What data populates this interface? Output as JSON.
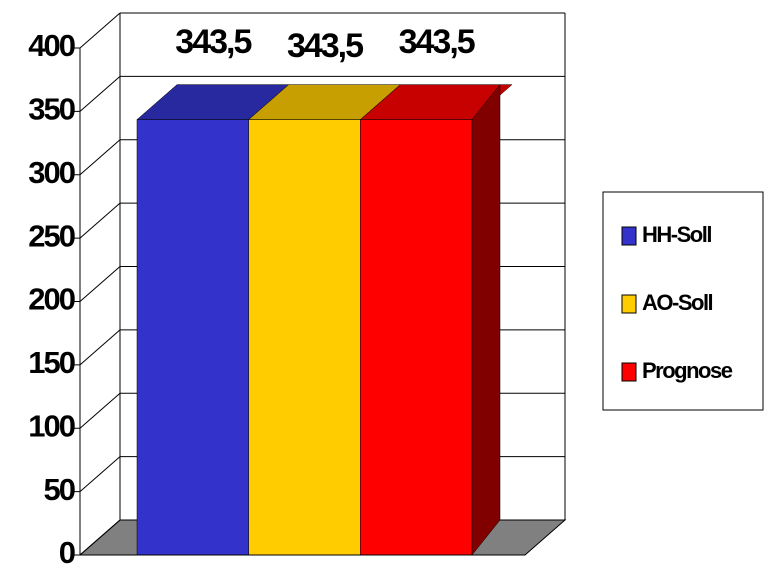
{
  "chart_data": {
    "type": "bar3d",
    "categories": [
      null
    ],
    "series": [
      {
        "name": "HH-Soll",
        "color": "#3333cc",
        "values": [
          343.5
        ],
        "value_labels": [
          "343,5"
        ]
      },
      {
        "name": "AO-Soll",
        "color": "#ffcc00",
        "values": [
          343.5
        ],
        "value_labels": [
          "343,5"
        ]
      },
      {
        "name": "Prognose",
        "color": "#ff0000",
        "values": [
          343.5
        ],
        "value_labels": [
          "343,5"
        ]
      }
    ],
    "ylim": [
      0,
      400
    ],
    "yticks": [
      0,
      50,
      100,
      150,
      200,
      250,
      300,
      350,
      400
    ],
    "grid": true,
    "legend": "right"
  }
}
